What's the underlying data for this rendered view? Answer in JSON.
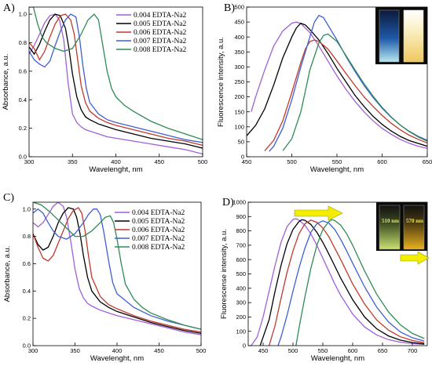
{
  "chart_data": [
    {
      "id": "A",
      "type": "line",
      "panel_label": "A)",
      "xlabel": "Wavelenght, nm",
      "ylabel": "Absorbance, a.u.",
      "xlim": [
        300,
        500
      ],
      "ylim": [
        0,
        1.05
      ],
      "xticks": [
        300,
        350,
        400,
        450,
        500
      ],
      "yticks": [
        0.0,
        0.2,
        0.4,
        0.6,
        0.8,
        1.0
      ],
      "legend": "top-right",
      "series": [
        {
          "name": "0.004 EDTA-Na2",
          "color": "#a05fd8",
          "x": [
            300,
            306,
            312,
            318,
            324,
            330,
            335,
            340,
            345,
            350,
            355,
            360,
            365,
            370,
            380,
            390,
            400,
            420,
            440,
            460,
            480,
            500
          ],
          "y": [
            0.72,
            0.78,
            0.86,
            0.94,
            0.99,
            1.0,
            0.96,
            0.82,
            0.52,
            0.3,
            0.24,
            0.21,
            0.19,
            0.18,
            0.16,
            0.14,
            0.13,
            0.11,
            0.09,
            0.07,
            0.05,
            0.02
          ]
        },
        {
          "name": "0.005 EDTA-Na2",
          "color": "#000000",
          "x": [
            300,
            306,
            312,
            318,
            324,
            330,
            336,
            342,
            346,
            350,
            355,
            360,
            365,
            370,
            380,
            390,
            400,
            420,
            440,
            460,
            480,
            500
          ],
          "y": [
            0.77,
            0.72,
            0.79,
            0.88,
            0.96,
            1.0,
            0.99,
            0.9,
            0.76,
            0.58,
            0.42,
            0.33,
            0.28,
            0.26,
            0.23,
            0.21,
            0.19,
            0.16,
            0.13,
            0.11,
            0.09,
            0.06
          ]
        },
        {
          "name": "0.006 EDTA-Na2",
          "color": "#c0392b",
          "x": [
            300,
            306,
            312,
            318,
            324,
            330,
            336,
            342,
            348,
            352,
            356,
            360,
            365,
            370,
            380,
            390,
            400,
            420,
            440,
            460,
            480,
            500
          ],
          "y": [
            0.8,
            0.76,
            0.68,
            0.74,
            0.84,
            0.93,
            0.99,
            1.0,
            0.96,
            0.86,
            0.68,
            0.5,
            0.38,
            0.32,
            0.27,
            0.24,
            0.22,
            0.19,
            0.16,
            0.13,
            0.11,
            0.08
          ]
        },
        {
          "name": "0.007 EDTA-Na2",
          "color": "#3f5fd0",
          "x": [
            300,
            306,
            312,
            318,
            324,
            330,
            336,
            342,
            348,
            354,
            358,
            362,
            366,
            370,
            380,
            390,
            400,
            420,
            440,
            460,
            480,
            500
          ],
          "y": [
            0.74,
            0.68,
            0.65,
            0.63,
            0.67,
            0.78,
            0.88,
            0.96,
            1.0,
            0.98,
            0.84,
            0.64,
            0.48,
            0.38,
            0.3,
            0.26,
            0.24,
            0.21,
            0.18,
            0.15,
            0.12,
            0.1
          ]
        },
        {
          "name": "0.008 EDTA-Na2",
          "color": "#2e8b57",
          "x": [
            300,
            305,
            310,
            315,
            320,
            330,
            340,
            350,
            360,
            368,
            375,
            380,
            385,
            390,
            395,
            400,
            410,
            420,
            440,
            460,
            480,
            500
          ],
          "y": [
            1.05,
            1.05,
            0.93,
            0.84,
            0.8,
            0.76,
            0.74,
            0.76,
            0.86,
            0.96,
            1.0,
            0.96,
            0.78,
            0.6,
            0.48,
            0.42,
            0.36,
            0.32,
            0.25,
            0.2,
            0.16,
            0.12
          ]
        }
      ]
    },
    {
      "id": "B",
      "type": "line",
      "panel_label": "B)",
      "xlabel": "Wavelenght, nm",
      "ylabel": "Fluorescence intensity, a.u.",
      "xlim": [
        450,
        650
      ],
      "ylim": [
        0,
        500
      ],
      "xticks": [
        450,
        500,
        550,
        600,
        650
      ],
      "yticks": [
        0,
        50,
        100,
        150,
        200,
        250,
        300,
        350,
        400,
        450,
        500
      ],
      "series": [
        {
          "name": "0.004 EDTA-Na2",
          "color": "#a05fd8",
          "x": [
            455,
            460,
            470,
            480,
            490,
            500,
            505,
            510,
            520,
            530,
            540,
            550,
            560,
            570,
            580,
            590,
            600,
            610,
            620,
            630,
            640,
            650
          ],
          "y": [
            150,
            200,
            290,
            370,
            420,
            446,
            450,
            445,
            415,
            370,
            320,
            270,
            225,
            185,
            150,
            120,
            95,
            75,
            58,
            45,
            35,
            28
          ]
        },
        {
          "name": "0.005 EDTA-Na2",
          "color": "#000000",
          "x": [
            450,
            460,
            470,
            480,
            490,
            500,
            505,
            510,
            515,
            520,
            530,
            540,
            550,
            560,
            570,
            580,
            590,
            600,
            610,
            620,
            630,
            650
          ],
          "y": [
            70,
            105,
            160,
            240,
            330,
            400,
            430,
            446,
            440,
            425,
            390,
            345,
            295,
            250,
            205,
            168,
            135,
            108,
            86,
            68,
            54,
            35
          ]
        },
        {
          "name": "0.006 EDTA-Na2",
          "color": "#c0392b",
          "x": [
            470,
            480,
            490,
            500,
            510,
            515,
            520,
            525,
            530,
            540,
            550,
            560,
            570,
            580,
            590,
            600,
            610,
            620,
            630,
            640,
            650
          ],
          "y": [
            20,
            55,
            120,
            215,
            315,
            360,
            385,
            390,
            385,
            360,
            320,
            278,
            238,
            200,
            168,
            138,
            112,
            90,
            72,
            58,
            46
          ]
        },
        {
          "name": "0.007 EDTA-Na2",
          "color": "#3f5fd0",
          "x": [
            475,
            480,
            490,
            500,
            510,
            520,
            525,
            530,
            535,
            540,
            550,
            560,
            570,
            580,
            590,
            600,
            610,
            620,
            630,
            640,
            650
          ],
          "y": [
            18,
            35,
            95,
            190,
            300,
            400,
            450,
            472,
            465,
            440,
            390,
            335,
            285,
            238,
            198,
            162,
            132,
            106,
            85,
            68,
            55
          ]
        },
        {
          "name": "0.008 EDTA-Na2",
          "color": "#2e8b57",
          "x": [
            490,
            500,
            510,
            515,
            520,
            530,
            535,
            540,
            550,
            560,
            570,
            580,
            590,
            600,
            610,
            620,
            630,
            640,
            650
          ],
          "y": [
            20,
            60,
            150,
            220,
            290,
            380,
            405,
            410,
            385,
            338,
            290,
            244,
            202,
            165,
            133,
            106,
            84,
            66,
            52
          ]
        }
      ],
      "inset": {
        "labels": []
      }
    },
    {
      "id": "C",
      "type": "line",
      "panel_label": "C)",
      "xlabel": "Wavelenght, nm",
      "ylabel": "Absorbance, a.u.",
      "xlim": [
        300,
        500
      ],
      "ylim": [
        0,
        1.05
      ],
      "xticks": [
        300,
        350,
        400,
        450,
        500
      ],
      "yticks": [
        0.0,
        0.2,
        0.4,
        0.6,
        0.8,
        1.0
      ],
      "legend": "top-right",
      "series": [
        {
          "name": "0.004 EDTA-Na2",
          "color": "#a05fd8",
          "x": [
            300,
            306,
            312,
            318,
            324,
            330,
            336,
            340,
            345,
            350,
            355,
            360,
            365,
            370,
            380,
            390,
            400,
            420,
            440,
            460,
            480,
            500
          ],
          "y": [
            0.9,
            0.87,
            0.9,
            0.96,
            1.02,
            1.05,
            1.02,
            0.94,
            0.76,
            0.56,
            0.42,
            0.35,
            0.31,
            0.29,
            0.26,
            0.24,
            0.22,
            0.19,
            0.16,
            0.13,
            0.1,
            0.08
          ]
        },
        {
          "name": "0.005 EDTA-Na2",
          "color": "#000000",
          "x": [
            300,
            306,
            312,
            318,
            324,
            330,
            336,
            342,
            348,
            352,
            356,
            360,
            365,
            370,
            380,
            390,
            400,
            420,
            440,
            460,
            480,
            500
          ],
          "y": [
            0.82,
            0.74,
            0.7,
            0.72,
            0.8,
            0.9,
            0.97,
            1.01,
            1.0,
            0.94,
            0.82,
            0.66,
            0.5,
            0.4,
            0.32,
            0.28,
            0.25,
            0.21,
            0.17,
            0.14,
            0.11,
            0.09
          ]
        },
        {
          "name": "0.006 EDTA-Na2",
          "color": "#c0392b",
          "x": [
            300,
            306,
            312,
            318,
            324,
            330,
            336,
            342,
            348,
            354,
            358,
            362,
            366,
            370,
            380,
            390,
            400,
            420,
            440,
            460,
            480,
            500
          ],
          "y": [
            0.82,
            0.72,
            0.64,
            0.62,
            0.66,
            0.75,
            0.84,
            0.93,
            0.99,
            1.01,
            0.97,
            0.84,
            0.66,
            0.5,
            0.36,
            0.3,
            0.27,
            0.22,
            0.18,
            0.15,
            0.12,
            0.1
          ]
        },
        {
          "name": "0.007 EDTA-Na2",
          "color": "#3f5fd0",
          "x": [
            300,
            306,
            312,
            318,
            324,
            330,
            340,
            350,
            360,
            366,
            372,
            376,
            380,
            384,
            390,
            395,
            400,
            420,
            440,
            460,
            480,
            500
          ],
          "y": [
            0.97,
            1.0,
            0.97,
            0.9,
            0.84,
            0.8,
            0.78,
            0.82,
            0.9,
            0.96,
            1.0,
            1.0,
            0.96,
            0.84,
            0.62,
            0.46,
            0.38,
            0.28,
            0.22,
            0.18,
            0.15,
            0.12
          ]
        },
        {
          "name": "0.008 EDTA-Na2",
          "color": "#2e8b57",
          "x": [
            300,
            310,
            320,
            330,
            340,
            350,
            360,
            370,
            380,
            386,
            392,
            396,
            400,
            405,
            410,
            420,
            430,
            440,
            460,
            480,
            500
          ],
          "y": [
            1.05,
            1.03,
            0.98,
            0.92,
            0.86,
            0.8,
            0.8,
            0.84,
            0.9,
            0.94,
            0.95,
            0.9,
            0.78,
            0.6,
            0.45,
            0.34,
            0.28,
            0.24,
            0.19,
            0.15,
            0.12
          ]
        }
      ]
    },
    {
      "id": "D",
      "type": "line",
      "panel_label": "D)",
      "xlabel": "Wavelenght, nm",
      "ylabel": "Fluorescense intensity, a.u.",
      "xlim": [
        425,
        725
      ],
      "ylim": [
        0,
        1000
      ],
      "xticks": [
        450,
        500,
        550,
        600,
        650,
        700
      ],
      "yticks": [
        0,
        100,
        200,
        300,
        400,
        500,
        600,
        700,
        800,
        900,
        1000
      ],
      "series": [
        {
          "name": "0.004 EDTA-Na2",
          "color": "#a05fd8",
          "x": [
            430,
            440,
            450,
            460,
            470,
            480,
            490,
            500,
            505,
            510,
            520,
            530,
            540,
            550,
            560,
            570,
            580,
            600,
            620,
            640,
            660,
            680,
            700,
            720
          ],
          "y": [
            0,
            60,
            200,
            380,
            560,
            720,
            830,
            880,
            885,
            875,
            840,
            780,
            700,
            610,
            520,
            430,
            350,
            220,
            130,
            75,
            42,
            24,
            14,
            8
          ]
        },
        {
          "name": "0.005 EDTA-Na2",
          "color": "#000000",
          "x": [
            445,
            460,
            470,
            480,
            490,
            500,
            510,
            515,
            520,
            530,
            540,
            550,
            560,
            570,
            580,
            600,
            620,
            640,
            660,
            680,
            700,
            720
          ],
          "y": [
            0,
            180,
            380,
            560,
            710,
            810,
            865,
            878,
            874,
            845,
            790,
            720,
            640,
            555,
            470,
            320,
            200,
            118,
            68,
            38,
            22,
            12
          ]
        },
        {
          "name": "0.006 EDTA-Na2",
          "color": "#c0392b",
          "x": [
            460,
            470,
            480,
            490,
            500,
            510,
            520,
            530,
            540,
            550,
            560,
            570,
            580,
            600,
            620,
            640,
            660,
            680,
            700,
            720
          ],
          "y": [
            0,
            140,
            330,
            510,
            660,
            780,
            850,
            875,
            860,
            820,
            760,
            680,
            600,
            430,
            290,
            180,
            108,
            62,
            36,
            20
          ]
        },
        {
          "name": "0.007 EDTA-Na2",
          "color": "#3f5fd0",
          "x": [
            475,
            480,
            490,
            500,
            510,
            520,
            530,
            540,
            550,
            560,
            570,
            580,
            590,
            600,
            620,
            640,
            660,
            680,
            700,
            720
          ],
          "y": [
            0,
            60,
            210,
            380,
            540,
            680,
            790,
            850,
            870,
            855,
            810,
            740,
            660,
            575,
            410,
            270,
            165,
            95,
            55,
            32
          ]
        },
        {
          "name": "0.008 EDTA-Na2",
          "color": "#2e8b57",
          "x": [
            505,
            510,
            520,
            530,
            540,
            550,
            560,
            565,
            570,
            580,
            590,
            600,
            610,
            620,
            640,
            660,
            680,
            700,
            720
          ],
          "y": [
            0,
            120,
            340,
            540,
            700,
            810,
            865,
            878,
            872,
            840,
            780,
            700,
            610,
            520,
            360,
            235,
            145,
            85,
            50
          ]
        }
      ],
      "inset": {
        "labels": [
          "510 nm",
          "570 nm"
        ]
      }
    }
  ]
}
